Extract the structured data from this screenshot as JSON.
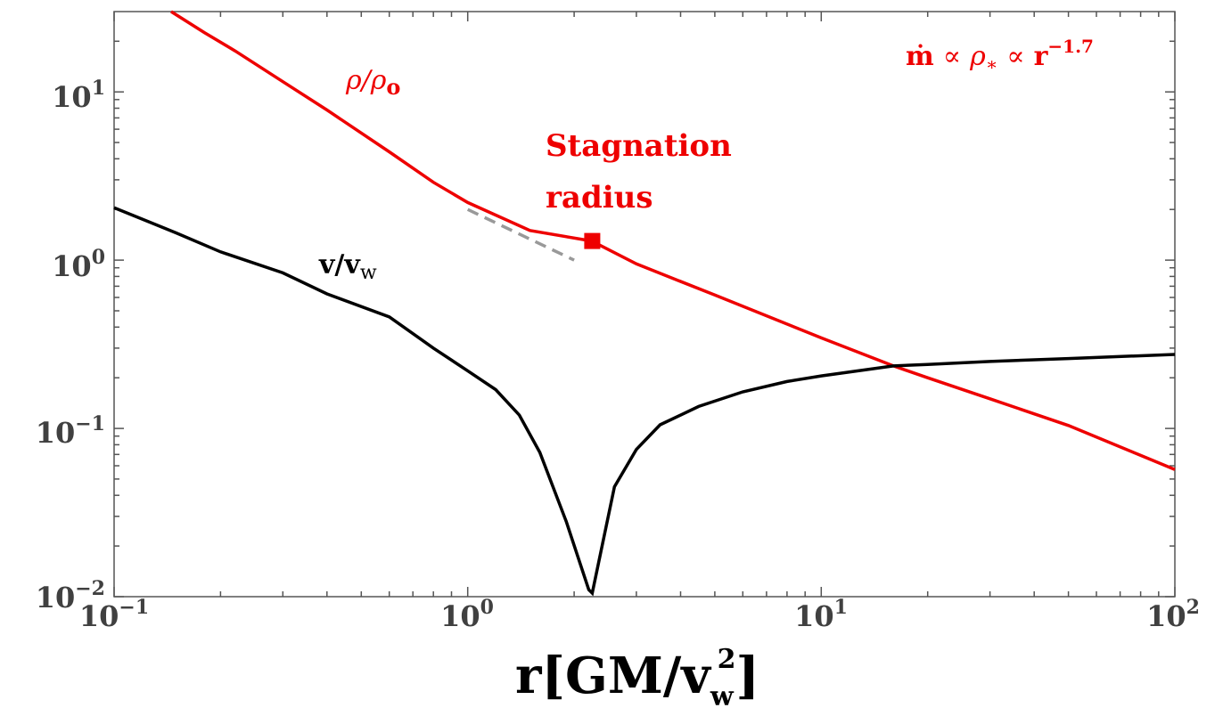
{
  "chart_data": {
    "type": "line",
    "x_scale": "log",
    "y_scale": "log",
    "xlim": [
      0.1,
      100
    ],
    "ylim": [
      0.01,
      30
    ],
    "grid": false,
    "xlabel": {
      "main": "r[GM/v",
      "sub": "w",
      "sup": "2",
      "close": "]"
    },
    "ylabel": "",
    "x_ticks": [
      {
        "value": 0.1,
        "base": "10",
        "exp": "−1"
      },
      {
        "value": 1,
        "base": "10",
        "exp": "0"
      },
      {
        "value": 10,
        "base": "10",
        "exp": "1"
      },
      {
        "value": 100,
        "base": "10",
        "exp": "2"
      }
    ],
    "y_ticks": [
      {
        "value": 0.01,
        "base": "10",
        "exp": "−2"
      },
      {
        "value": 0.1,
        "base": "10",
        "exp": "−1"
      },
      {
        "value": 1,
        "base": "10",
        "exp": "0"
      },
      {
        "value": 10,
        "base": "10",
        "exp": "1"
      }
    ],
    "series": [
      {
        "label_main": "ρ/ρ",
        "label_sub": "o",
        "color": "#ee0000",
        "x": [
          0.145,
          0.18,
          0.22,
          0.3,
          0.4,
          0.6,
          0.8,
          1.0,
          1.5,
          2.24,
          3,
          5,
          10,
          16,
          20,
          30,
          50,
          100
        ],
        "y": [
          30,
          22.5,
          17.5,
          11.5,
          7.8,
          4.4,
          2.9,
          2.2,
          1.5,
          1.3,
          0.95,
          0.62,
          0.345,
          0.235,
          0.2,
          0.15,
          0.104,
          0.057
        ]
      },
      {
        "label_main": "v/v",
        "label_sub": "w",
        "color": "#000000",
        "x": [
          0.1,
          0.15,
          0.2,
          0.3,
          0.4,
          0.6,
          0.8,
          1.0,
          1.2,
          1.4,
          1.6,
          1.9,
          2.2,
          2.25,
          2.6,
          3.0,
          3.5,
          4.5,
          6,
          8,
          10,
          16,
          20,
          30,
          50,
          100
        ],
        "y": [
          2.05,
          1.45,
          1.12,
          0.84,
          0.63,
          0.46,
          0.3,
          0.22,
          0.17,
          0.12,
          0.072,
          0.028,
          0.011,
          0.0105,
          0.045,
          0.075,
          0.105,
          0.135,
          0.165,
          0.19,
          0.205,
          0.235,
          0.24,
          0.25,
          0.26,
          0.275
        ]
      }
    ],
    "reference_line": {
      "color": "#999999",
      "style": "dashed",
      "x": [
        1.0,
        2.0
      ],
      "y": [
        2.0,
        1.0
      ]
    },
    "marker": {
      "x": 2.25,
      "y": 1.3,
      "shape": "square",
      "color": "#ee0000"
    },
    "annotations": {
      "stagnation_line1": "Stagnation",
      "stagnation_line2": "radius",
      "scaling": {
        "mdot": "ṁ",
        "prop1": "∝",
        "rho": "ρ",
        "rho_sub": "∗",
        "prop2": "∝",
        "r": "r",
        "exp": "−1.7"
      }
    }
  }
}
